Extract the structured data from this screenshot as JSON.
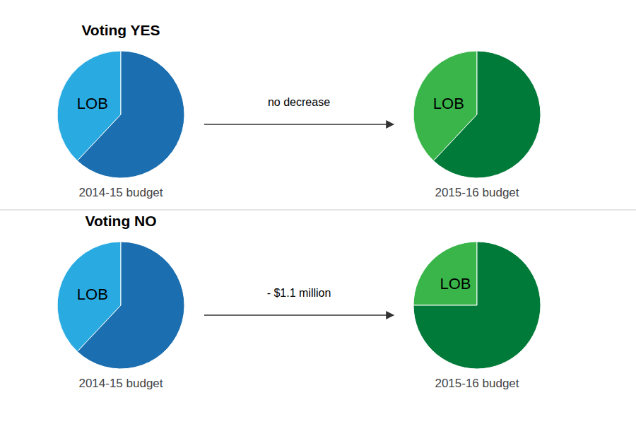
{
  "chart_data": [
    {
      "type": "pie",
      "title": "Voting YES",
      "xlabel": "2014-15 budget",
      "categories": [
        "LOB",
        null
      ],
      "values": [
        0.38,
        0.62
      ],
      "colors": [
        "#29ABE2",
        "#1B6EAF"
      ]
    },
    {
      "type": "pie",
      "xlabel": "2015-16 budget",
      "annotations": [
        "no decrease"
      ],
      "categories": [
        "LOB",
        null
      ],
      "values": [
        0.38,
        0.62
      ],
      "colors": [
        "#39B54A",
        "#007A38"
      ]
    },
    {
      "type": "pie",
      "title": "Voting NO",
      "xlabel": "2014-15 budget",
      "categories": [
        "LOB",
        null
      ],
      "values": [
        0.38,
        0.62
      ],
      "colors": [
        "#29ABE2",
        "#1B6EAF"
      ]
    },
    {
      "type": "pie",
      "xlabel": "2015-16 budget",
      "annotations": [
        "- $1.1 million"
      ],
      "categories": [
        "LOB",
        null
      ],
      "values": [
        0.25,
        0.75
      ],
      "colors": [
        "#39B54A",
        "#007A38"
      ]
    }
  ]
}
